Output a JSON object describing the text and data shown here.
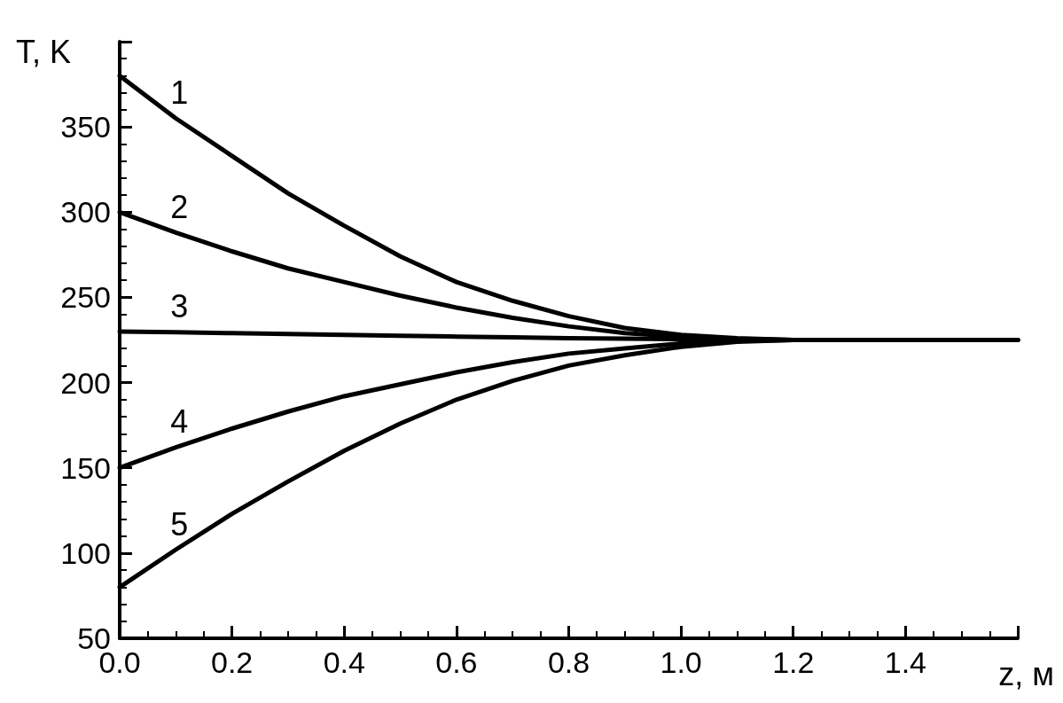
{
  "chart_data": {
    "type": "line",
    "xlabel": "z, м",
    "ylabel": "T, K",
    "x": [
      0,
      0.1,
      0.2,
      0.3,
      0.4,
      0.5,
      0.6,
      0.7,
      0.8,
      0.9,
      1.0,
      1.1,
      1.2,
      1.6
    ],
    "series": [
      {
        "name": "1",
        "color": "#000000",
        "values": [
          380,
          355,
          333,
          311,
          292,
          274,
          259,
          248,
          239,
          232,
          228,
          226,
          225,
          225
        ]
      },
      {
        "name": "2",
        "color": "#000000",
        "values": [
          300,
          288,
          277,
          267,
          259,
          251,
          244,
          238,
          233,
          229,
          227,
          225.5,
          225,
          225
        ]
      },
      {
        "name": "3",
        "color": "#000000",
        "values": [
          230,
          229.5,
          229,
          228.5,
          228,
          227.5,
          227,
          226.5,
          226,
          225.8,
          225.5,
          225.2,
          225,
          225
        ]
      },
      {
        "name": "4",
        "color": "#000000",
        "values": [
          150,
          162,
          173,
          183,
          192,
          199,
          206,
          212,
          217,
          220,
          223,
          224.5,
          225,
          225
        ]
      },
      {
        "name": "5",
        "color": "#000000",
        "values": [
          80,
          102,
          123,
          142,
          160,
          176,
          190,
          201,
          210,
          216,
          221,
          224,
          225,
          225
        ]
      }
    ],
    "xlim": [
      0,
      1.6
    ],
    "ylim": [
      50,
      400
    ],
    "xticks": [
      {
        "value": 0,
        "label": "0.0"
      },
      0.2,
      0.4,
      0.6,
      0.8,
      {
        "value": 1,
        "label": "1.0"
      },
      1.2,
      1.4
    ],
    "yticks": [
      50,
      100,
      150,
      200,
      250,
      300,
      350
    ],
    "grid": false,
    "marker": "none",
    "line_style": "solid",
    "legend": false
  }
}
